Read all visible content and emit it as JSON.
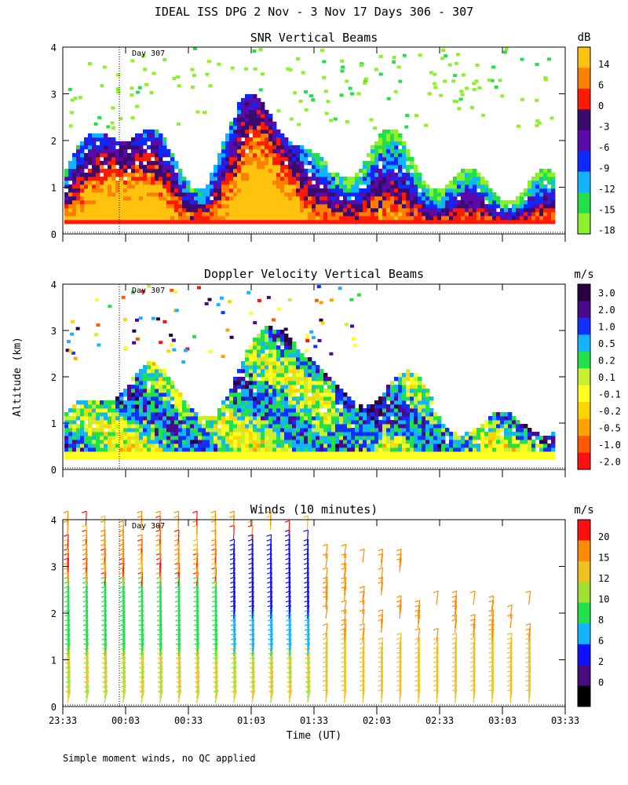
{
  "header": {
    "title": "IDEAL ISS DPG   2 Nov -  3 Nov 17 Days 306 - 307"
  },
  "footer": {
    "note": "Simple moment winds, no QC applied"
  },
  "axes": {
    "ylabel": "Altitude (km)",
    "xlabel": "Time (UT)",
    "x_ticks": [
      "23:33",
      "00:03",
      "00:33",
      "01:03",
      "01:33",
      "02:03",
      "02:33",
      "03:03",
      "03:33"
    ],
    "y_ticks": [
      "0",
      "1",
      "2",
      "3",
      "4"
    ]
  },
  "chart_data": [
    {
      "type": "heatmap",
      "title": "SNR Vertical Beams",
      "units": "dB",
      "marker_label": "Day 307",
      "colorbar": {
        "labels": [
          "14",
          "6",
          "0",
          "-3",
          "-6",
          "-9",
          "-12",
          "-15",
          "-18"
        ],
        "colors": [
          "#ffc20e",
          "#ff8000",
          "#ff1a00",
          "#3a0a6e",
          "#5a0aa8",
          "#0a2aff",
          "#12b4ff",
          "#22e04a",
          "#8cf02a"
        ]
      },
      "ylim": [
        0,
        4
      ],
      "xlim": [
        "23:33",
        "03:33"
      ]
    },
    {
      "type": "heatmap",
      "title": "Doppler Velocity Vertical Beams",
      "units": "m/s",
      "marker_label": "Day 307",
      "colorbar": {
        "labels": [
          "3.0",
          "2.0",
          "1.0",
          "0.5",
          "0.2",
          "0.1",
          "-0.1",
          "-0.2",
          "-0.5",
          "-1.0",
          "-2.0"
        ],
        "colors": [
          "#2a0040",
          "#4a0a90",
          "#1030ff",
          "#12b4ff",
          "#22e04a",
          "#c8f030",
          "#ffff20",
          "#ffd400",
          "#ffa200",
          "#ff5a00",
          "#ff1010"
        ]
      },
      "ylim": [
        0,
        4
      ],
      "xlim": [
        "23:33",
        "03:33"
      ]
    },
    {
      "type": "scatter",
      "title": "Winds (10 minutes)",
      "units": "m/s",
      "marker_label": "Day 307",
      "colorbar": {
        "labels": [
          "20",
          "15",
          "12",
          "10",
          "8",
          "6",
          "2",
          "0"
        ],
        "colors": [
          "#ff1010",
          "#ff8c00",
          "#f0c020",
          "#a0e030",
          "#22e04a",
          "#12b4ff",
          "#1010ff",
          "#4a0a80",
          "#000000"
        ]
      },
      "ylim": [
        0,
        4
      ],
      "xlim": [
        "23:33",
        "03:33"
      ]
    }
  ]
}
